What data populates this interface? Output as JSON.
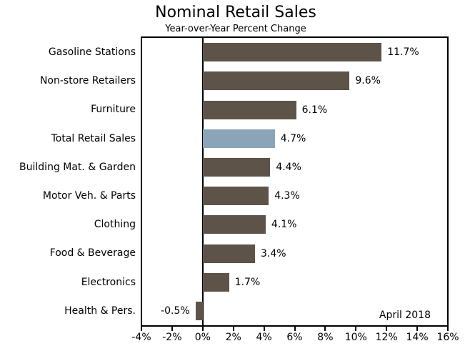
{
  "chart_data": {
    "type": "bar",
    "orientation": "horizontal",
    "title": "Nominal Retail Sales",
    "subtitle": "Year-over-Year Percent Change",
    "categories": [
      "Gasoline Stations",
      "Non-store Retailers",
      "Furniture",
      "Total Retail Sales",
      "Building Mat. & Garden",
      "Motor Veh. & Parts",
      "Clothing",
      "Food & Beverage",
      "Electronics",
      "Health & Pers."
    ],
    "values": [
      11.7,
      9.6,
      6.1,
      4.7,
      4.4,
      4.3,
      4.1,
      3.4,
      1.7,
      -0.5
    ],
    "value_labels": [
      "11.7%",
      "9.6%",
      "6.1%",
      "4.7%",
      "4.4%",
      "4.3%",
      "4.1%",
      "3.4%",
      "1.7%",
      "-0.5%"
    ],
    "highlight_index": 3,
    "bar_color": "#5D5348",
    "highlight_color": "#8BA4B8",
    "axis_color": "#000000",
    "text_color": "#000000",
    "xlim": [
      -4,
      16
    ],
    "x_tick_values": [
      -4,
      -2,
      0,
      2,
      4,
      6,
      8,
      10,
      12,
      14,
      16
    ],
    "x_tick_labels": [
      "-4%",
      "-2%",
      "0%",
      "2%",
      "4%",
      "6%",
      "8%",
      "10%",
      "12%",
      "14%",
      "16%"
    ],
    "annotation": "April 2018",
    "grid": "none",
    "legend": "none",
    "xlabel": "",
    "ylabel": ""
  }
}
